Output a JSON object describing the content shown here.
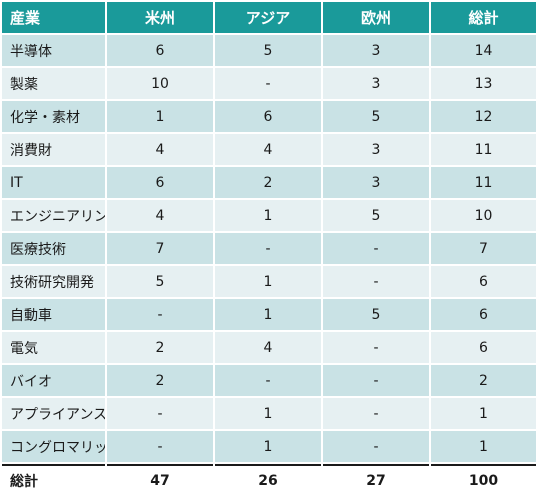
{
  "columns": [
    "産業",
    "米州",
    "アジア",
    "欧州",
    "総計"
  ],
  "rows": [
    {
      "label": "半導体",
      "values": [
        "6",
        "5",
        "3",
        "14"
      ]
    },
    {
      "label": "製薬",
      "values": [
        "10",
        "-",
        "3",
        "13"
      ]
    },
    {
      "label": "化学・素材",
      "values": [
        "1",
        "6",
        "5",
        "12"
      ]
    },
    {
      "label": "消費財",
      "values": [
        "4",
        "4",
        "3",
        "11"
      ]
    },
    {
      "label": "IT",
      "values": [
        "6",
        "2",
        "3",
        "11"
      ]
    },
    {
      "label": "エンジニアリング",
      "values": [
        "4",
        "1",
        "5",
        "10"
      ]
    },
    {
      "label": "医療技術",
      "values": [
        "7",
        "-",
        "-",
        "7"
      ]
    },
    {
      "label": "技術研究開発",
      "values": [
        "5",
        "1",
        "-",
        "6"
      ]
    },
    {
      "label": "自動車",
      "values": [
        "-",
        "1",
        "5",
        "6"
      ]
    },
    {
      "label": "電気",
      "values": [
        "2",
        "4",
        "-",
        "6"
      ]
    },
    {
      "label": "バイオ",
      "values": [
        "2",
        "-",
        "-",
        "2"
      ]
    },
    {
      "label": "アプライアンス",
      "values": [
        "-",
        "1",
        "-",
        "1"
      ]
    },
    {
      "label": "コングロマリット",
      "values": [
        "-",
        "1",
        "-",
        "1"
      ]
    }
  ],
  "total": {
    "label": "総計",
    "values": [
      "47",
      "26",
      "27",
      "100"
    ]
  },
  "colors": {
    "header_bg": "#1a9a9a",
    "row_odd_bg": "#c9e2e5",
    "row_even_bg": "#e6f0f2"
  }
}
